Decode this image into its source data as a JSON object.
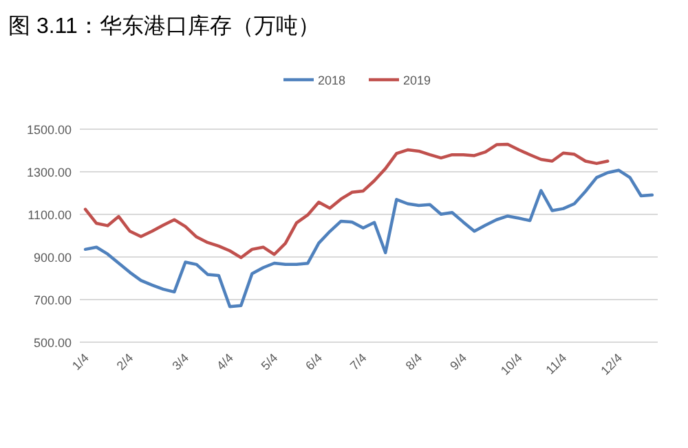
{
  "chart_data": {
    "type": "line",
    "title": "图 3.11：华东港口库存（万吨）",
    "categories": [
      "1/4",
      null,
      null,
      null,
      "2/4",
      null,
      null,
      null,
      null,
      "3/4",
      null,
      null,
      null,
      "4/4",
      null,
      null,
      null,
      "5/4",
      null,
      null,
      null,
      "6/4",
      null,
      null,
      null,
      "7/4",
      null,
      null,
      null,
      null,
      "8/4",
      null,
      null,
      null,
      "9/4",
      null,
      null,
      null,
      null,
      "10/4",
      null,
      null,
      null,
      "11/4",
      null,
      null,
      null,
      null,
      "12/4",
      null,
      null,
      null
    ],
    "series": [
      {
        "name": "2018",
        "color": "#4f81bd",
        "values": [
          936,
          946,
          914,
          871,
          828,
          790,
          768,
          749,
          736,
          876,
          865,
          818,
          813,
          667,
          672,
          822,
          850,
          871,
          865,
          865,
          870,
          965,
          1020,
          1068,
          1064,
          1036,
          1062,
          920,
          1170,
          1150,
          1142,
          1146,
          1101,
          1109,
          1064,
          1021,
          1049,
          1075,
          1092,
          1082,
          1071,
          1212,
          1118,
          1127,
          1150,
          1208,
          1273,
          1296,
          1307,
          1273,
          1187,
          1191
        ]
      },
      {
        "name": "2019",
        "color": "#c0504d",
        "values": [
          1124,
          1058,
          1047,
          1090,
          1021,
          996,
          1021,
          1049,
          1075,
          1043,
          994,
          968,
          951,
          929,
          897,
          936,
          946,
          912,
          964,
          1060,
          1097,
          1157,
          1129,
          1172,
          1204,
          1210,
          1258,
          1315,
          1386,
          1403,
          1397,
          1380,
          1365,
          1380,
          1380,
          1376,
          1393,
          1427,
          1429,
          1403,
          1380,
          1358,
          1350,
          1388,
          1382,
          1350,
          1339,
          1350,
          null,
          null,
          null,
          null
        ]
      }
    ],
    "ylim": [
      500,
      1500
    ],
    "yticks": [
      {
        "value": 500,
        "label": "500.00"
      },
      {
        "value": 700,
        "label": "700.00"
      },
      {
        "value": 900,
        "label": "900.00"
      },
      {
        "value": 1100,
        "label": "1100.00"
      },
      {
        "value": 1300,
        "label": "1300.00"
      },
      {
        "value": 1500,
        "label": "1500.00"
      }
    ],
    "grid": "y",
    "legend": "top",
    "marker": "none",
    "line_style": "solid"
  }
}
